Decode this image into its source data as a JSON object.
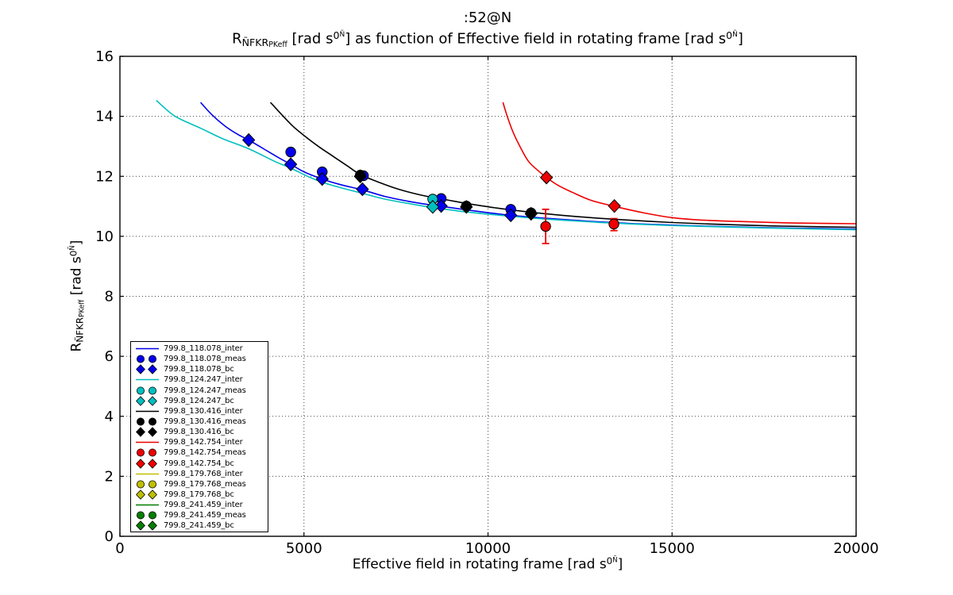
{
  "figure": {
    "title": ":52@N",
    "background": "#ffffff",
    "subtitle_parts": [
      {
        "t": "R",
        "s": "n"
      },
      {
        "t": "ÑFKR",
        "s": "sub"
      },
      {
        "t": "PKeff",
        "s": "subsub"
      },
      {
        "t": " [rad s",
        "s": "n"
      },
      {
        "t": "0",
        "s": "sup"
      },
      {
        "t": "Ñ",
        "s": "supsup"
      },
      {
        "t": "] as function of Effective field in rotating frame [rad s",
        "s": "n"
      },
      {
        "t": "0",
        "s": "sup"
      },
      {
        "t": "Ñ",
        "s": "supsup"
      },
      {
        "t": "]",
        "s": "n"
      }
    ],
    "xlabel_parts": [
      {
        "t": "Effective field in rotating frame [rad s",
        "s": "n"
      },
      {
        "t": "0",
        "s": "sup"
      },
      {
        "t": "Ñ",
        "s": "supsup"
      },
      {
        "t": "]",
        "s": "n"
      }
    ],
    "ylabel_parts": [
      {
        "t": "R",
        "s": "n"
      },
      {
        "t": "ÑFKR",
        "s": "sub"
      },
      {
        "t": "PKeff",
        "s": "subsub"
      },
      {
        "t": " [rad s",
        "s": "n"
      },
      {
        "t": "0",
        "s": "sup"
      },
      {
        "t": "Ñ",
        "s": "supsup"
      },
      {
        "t": "]",
        "s": "n"
      }
    ]
  },
  "chart_data": {
    "type": "line",
    "title": ":52@N",
    "subtitle": "R_ÑFKR_PKeff [rad s0Ñ] as function of Effective field in rotating frame [rad s0Ñ]",
    "xlabel": "Effective field in rotating frame [rad s0Ñ]",
    "ylabel": "R_ÑFKR_PKeff [rad s0Ñ]",
    "xlim": [
      0,
      20000
    ],
    "ylim": [
      0,
      16
    ],
    "xticks": [
      0,
      5000,
      10000,
      15000,
      20000
    ],
    "xtick_labels": [
      "0",
      "5000",
      "10000",
      "15000",
      "20000"
    ],
    "yticks": [
      0,
      2,
      4,
      6,
      8,
      10,
      12,
      14,
      16
    ],
    "ytick_labels": [
      "0",
      "2",
      "4",
      "6",
      "8",
      "10",
      "12",
      "14",
      "16"
    ],
    "grid": true,
    "grid_style": "dotted",
    "legend_position": "lower left",
    "series": [
      {
        "name": "799.8_118.078_inter",
        "type": "line",
        "color": "#0000EE",
        "points": [
          [
            2200,
            14.45
          ],
          [
            2500,
            14.05
          ],
          [
            2850,
            13.68
          ],
          [
            3200,
            13.4
          ],
          [
            3498,
            13.21
          ],
          [
            3900,
            12.92
          ],
          [
            4300,
            12.63
          ],
          [
            4641,
            12.4
          ],
          [
            5000,
            12.15
          ],
          [
            5496,
            11.91
          ],
          [
            6000,
            11.72
          ],
          [
            6588,
            11.55
          ],
          [
            7200,
            11.33
          ],
          [
            8000,
            11.13
          ],
          [
            8728,
            11.0
          ],
          [
            9600,
            10.85
          ],
          [
            10618,
            10.7
          ],
          [
            11600,
            10.6
          ],
          [
            12800,
            10.5
          ],
          [
            14000,
            10.42
          ],
          [
            15500,
            10.35
          ],
          [
            17500,
            10.29
          ],
          [
            20000,
            10.24
          ]
        ]
      },
      {
        "name": "799.8_118.078_meas",
        "type": "scatter-circle",
        "color": "#0000EE",
        "points": [
          [
            4641,
            12.81
          ],
          [
            5496,
            12.15
          ],
          [
            6616,
            12.02
          ],
          [
            8728,
            11.26
          ],
          [
            10618,
            10.9
          ]
        ]
      },
      {
        "name": "799.8_118.078_bc",
        "type": "scatter-diamond",
        "color": "#0000EE",
        "points": [
          [
            3498,
            13.21
          ],
          [
            4641,
            12.4
          ],
          [
            5496,
            11.91
          ],
          [
            6588,
            11.57
          ],
          [
            8728,
            11.01
          ],
          [
            10618,
            10.7
          ]
        ]
      },
      {
        "name": "799.8_124.247_inter",
        "type": "line",
        "color": "#00BFBF",
        "points": [
          [
            1000,
            14.52
          ],
          [
            1500,
            14.0
          ],
          [
            2200,
            13.6
          ],
          [
            2800,
            13.25
          ],
          [
            3498,
            12.92
          ],
          [
            4200,
            12.5
          ],
          [
            4641,
            12.27
          ],
          [
            5100,
            12.0
          ],
          [
            5496,
            11.8
          ],
          [
            6000,
            11.62
          ],
          [
            6566,
            11.44
          ],
          [
            7200,
            11.24
          ],
          [
            8000,
            11.06
          ],
          [
            8498,
            10.96
          ],
          [
            9500,
            10.8
          ],
          [
            10596,
            10.67
          ],
          [
            11600,
            10.57
          ],
          [
            12800,
            10.48
          ],
          [
            13406,
            10.44
          ],
          [
            15000,
            10.36
          ],
          [
            17500,
            10.28
          ],
          [
            20000,
            10.22
          ]
        ]
      },
      {
        "name": "799.8_124.247_meas",
        "type": "scatter-circle",
        "color": "#00BFBF",
        "points": [
          [
            8498,
            11.24
          ]
        ]
      },
      {
        "name": "799.8_124.247_bc",
        "type": "scatter-diamond",
        "color": "#00BFBF",
        "points": [
          [
            8498,
            10.98
          ]
        ]
      },
      {
        "name": "799.8_130.416_inter",
        "type": "line",
        "color": "#000000",
        "points": [
          [
            4100,
            14.45
          ],
          [
            4400,
            14.05
          ],
          [
            4700,
            13.67
          ],
          [
            5022,
            13.34
          ],
          [
            5400,
            12.99
          ],
          [
            5800,
            12.66
          ],
          [
            6200,
            12.33
          ],
          [
            6530,
            12.06
          ],
          [
            7000,
            11.82
          ],
          [
            7543,
            11.58
          ],
          [
            8200,
            11.37
          ],
          [
            8900,
            11.21
          ],
          [
            9397,
            11.1
          ],
          [
            10200,
            10.95
          ],
          [
            11164,
            10.8
          ],
          [
            12200,
            10.68
          ],
          [
            13406,
            10.57
          ],
          [
            15000,
            10.46
          ],
          [
            16500,
            10.39
          ],
          [
            18000,
            10.34
          ],
          [
            20000,
            10.3
          ]
        ]
      },
      {
        "name": "799.8_130.416_meas",
        "type": "scatter-circle",
        "color": "#000000",
        "points": [
          [
            6530,
            12.04
          ],
          [
            9412,
            11.01
          ],
          [
            11170,
            10.78
          ]
        ]
      },
      {
        "name": "799.8_130.416_bc",
        "type": "scatter-diamond",
        "color": "#000000",
        "points": [
          [
            6530,
            12.0
          ],
          [
            9412,
            10.98
          ],
          [
            11170,
            10.75
          ]
        ]
      },
      {
        "name": "799.8_142.754_inter",
        "type": "line",
        "color": "#EE0000",
        "points": [
          [
            10409,
            14.45
          ],
          [
            10550,
            13.9
          ],
          [
            10700,
            13.42
          ],
          [
            10900,
            12.92
          ],
          [
            11099,
            12.5
          ],
          [
            11350,
            12.2
          ],
          [
            11588,
            11.96
          ],
          [
            11900,
            11.7
          ],
          [
            12284,
            11.47
          ],
          [
            12800,
            11.2
          ],
          [
            13433,
            11.0
          ],
          [
            14200,
            10.79
          ],
          [
            15022,
            10.62
          ],
          [
            16000,
            10.53
          ],
          [
            17243,
            10.48
          ],
          [
            18500,
            10.44
          ],
          [
            20000,
            10.42
          ]
        ]
      },
      {
        "name": "799.8_142.754_meas",
        "type": "scatter-circle",
        "color": "#EE0000",
        "points": [
          [
            11566,
            10.33
          ],
          [
            13420,
            10.41
          ]
        ],
        "yerr": [
          [
            0.57,
            0.57
          ],
          [
            0.22,
            0.18
          ]
        ]
      },
      {
        "name": "799.8_142.754_bc",
        "type": "scatter-diamond",
        "color": "#EE0000",
        "points": [
          [
            11588,
            11.96
          ],
          [
            13433,
            11.01
          ]
        ]
      },
      {
        "name": "799.8_179.768_inter",
        "type": "line",
        "color": "#BFBF00",
        "points": []
      },
      {
        "name": "799.8_179.768_meas",
        "type": "scatter-circle",
        "color": "#BFBF00",
        "points": []
      },
      {
        "name": "799.8_179.768_bc",
        "type": "scatter-diamond",
        "color": "#BFBF00",
        "points": []
      },
      {
        "name": "799.8_241.459_inter",
        "type": "line",
        "color": "#007F00",
        "points": []
      },
      {
        "name": "799.8_241.459_meas",
        "type": "scatter-circle",
        "color": "#007F00",
        "points": []
      },
      {
        "name": "799.8_241.459_bc",
        "type": "scatter-diamond",
        "color": "#007F00",
        "points": []
      }
    ]
  },
  "legend": {
    "items": [
      {
        "label": "799.8_118.078_inter",
        "color": "#0000EE",
        "marker": "line"
      },
      {
        "label": "799.8_118.078_meas",
        "color": "#0000EE",
        "marker": "circle"
      },
      {
        "label": "799.8_118.078_bc",
        "color": "#0000EE",
        "marker": "diamond"
      },
      {
        "label": "799.8_124.247_inter",
        "color": "#00BFBF",
        "marker": "line"
      },
      {
        "label": "799.8_124.247_meas",
        "color": "#00BFBF",
        "marker": "circle"
      },
      {
        "label": "799.8_124.247_bc",
        "color": "#00BFBF",
        "marker": "diamond"
      },
      {
        "label": "799.8_130.416_inter",
        "color": "#000000",
        "marker": "line"
      },
      {
        "label": "799.8_130.416_meas",
        "color": "#000000",
        "marker": "circle"
      },
      {
        "label": "799.8_130.416_bc",
        "color": "#000000",
        "marker": "diamond"
      },
      {
        "label": "799.8_142.754_inter",
        "color": "#EE0000",
        "marker": "line"
      },
      {
        "label": "799.8_142.754_meas",
        "color": "#EE0000",
        "marker": "circle"
      },
      {
        "label": "799.8_142.754_bc",
        "color": "#EE0000",
        "marker": "diamond"
      },
      {
        "label": "799.8_179.768_inter",
        "color": "#BFBF00",
        "marker": "line"
      },
      {
        "label": "799.8_179.768_meas",
        "color": "#BFBF00",
        "marker": "circle"
      },
      {
        "label": "799.8_179.768_bc",
        "color": "#BFBF00",
        "marker": "diamond"
      },
      {
        "label": "799.8_241.459_inter",
        "color": "#007F00",
        "marker": "line"
      },
      {
        "label": "799.8_241.459_meas",
        "color": "#007F00",
        "marker": "circle"
      },
      {
        "label": "799.8_241.459_bc",
        "color": "#007F00",
        "marker": "diamond"
      }
    ]
  }
}
